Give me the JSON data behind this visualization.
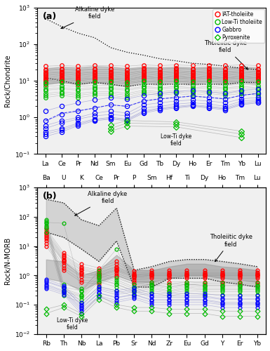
{
  "panel_a": {
    "title": "(a)",
    "ylabel": "Rock/Chondrite",
    "ylim_log": [
      -1,
      3
    ],
    "elements": [
      "La",
      "Ce",
      "Pr",
      "Nd",
      "Sm",
      "Eu",
      "Gd",
      "Tb",
      "Dy",
      "Ho",
      "Er",
      "Tm",
      "Yb",
      "Lu"
    ],
    "alkaline_field_upper": [
      500,
      300,
      200,
      150,
      80,
      60,
      50,
      40,
      35,
      30,
      28,
      25,
      22,
      20
    ],
    "alkaline_field_lower": [
      12,
      10,
      8,
      9,
      8,
      7,
      8,
      8,
      8,
      8,
      8,
      8,
      9,
      9
    ],
    "tholeiitic_field_upper": [
      22,
      24,
      23,
      25,
      24,
      22,
      24,
      23,
      24,
      23,
      24,
      23,
      24,
      23
    ],
    "tholeiitic_field_lower": [
      8,
      9,
      8,
      9,
      8,
      7,
      9,
      8,
      9,
      8,
      9,
      8,
      9,
      8
    ],
    "IAT_samples": [
      [
        11,
        12,
        11,
        12,
        12,
        11,
        13,
        12,
        13,
        12,
        13,
        12,
        13,
        12
      ],
      [
        10,
        11,
        10,
        11,
        11,
        10,
        12,
        11,
        12,
        11,
        12,
        11,
        12,
        11
      ],
      [
        12,
        13,
        12,
        13,
        13,
        12,
        14,
        13,
        14,
        13,
        14,
        13,
        14,
        13
      ],
      [
        9,
        10,
        9,
        10,
        10,
        9,
        11,
        10,
        11,
        10,
        11,
        10,
        11,
        10
      ],
      [
        14,
        15,
        14,
        15,
        15,
        14,
        16,
        15,
        16,
        15,
        16,
        15,
        16,
        15
      ],
      [
        11,
        12,
        11,
        12,
        12,
        11,
        13,
        12,
        13,
        12,
        13,
        12,
        13,
        12
      ],
      [
        15,
        16,
        15,
        16,
        16,
        15,
        17,
        16,
        17,
        16,
        17,
        16,
        17,
        16
      ],
      [
        8,
        9,
        8,
        9,
        9,
        8,
        10,
        9,
        10,
        9,
        10,
        9,
        10,
        9
      ],
      [
        20,
        21,
        20,
        21,
        21,
        20,
        22,
        21,
        22,
        21,
        22,
        21,
        22,
        21
      ],
      [
        13,
        14,
        13,
        14,
        14,
        13,
        15,
        14,
        15,
        14,
        15,
        14,
        15,
        14
      ],
      [
        17,
        18,
        17,
        18,
        18,
        17,
        19,
        18,
        19,
        18,
        19,
        18,
        19,
        18
      ],
      [
        10,
        11,
        10,
        11,
        11,
        10,
        12,
        11,
        12,
        11,
        12,
        11,
        12,
        11
      ],
      [
        25,
        26,
        25,
        26,
        26,
        25,
        27,
        26,
        27,
        26,
        27,
        26,
        27,
        26
      ],
      [
        16,
        17,
        16,
        17,
        17,
        16,
        18,
        17,
        18,
        17,
        18,
        17,
        18,
        17
      ],
      [
        19,
        20,
        19,
        20,
        20,
        19,
        21,
        20,
        21,
        20,
        21,
        20,
        21,
        20
      ]
    ],
    "LowTi_samples": [
      [
        4.5,
        5.0,
        4.5,
        5.0,
        5.0,
        4.5,
        5.5,
        5.0,
        5.5,
        5.0,
        5.5,
        5.0,
        5.5,
        5.0
      ],
      [
        3.5,
        4.0,
        3.5,
        4.0,
        4.0,
        3.5,
        4.5,
        4.0,
        4.5,
        4.0,
        4.5,
        4.0,
        4.5,
        4.0
      ],
      [
        5.5,
        6.0,
        5.5,
        6.0,
        6.0,
        5.5,
        6.5,
        6.0,
        6.5,
        6.0,
        6.5,
        6.0,
        6.5,
        6.0
      ],
      [
        7.0,
        7.5,
        7.0,
        7.5,
        7.5,
        7.0,
        8.0,
        7.5,
        8.0,
        7.5,
        8.0,
        7.5,
        8.0,
        7.5
      ],
      [
        6.0,
        6.5,
        6.0,
        6.5,
        6.5,
        6.0,
        7.0,
        6.5,
        7.0,
        6.5,
        7.0,
        6.5,
        7.0,
        6.5
      ],
      [
        8.5,
        9.0,
        8.5,
        9.0,
        9.0,
        8.5,
        9.5,
        9.0,
        9.5,
        9.0,
        9.5,
        9.0,
        9.5,
        9.0
      ],
      [
        4.0,
        4.5,
        4.0,
        4.5,
        4.5,
        4.0,
        5.0,
        4.5,
        5.0,
        4.5,
        5.0,
        4.5,
        5.0,
        4.5
      ],
      [
        9.0,
        9.5,
        9.0,
        9.5,
        9.5,
        9.0,
        10.0,
        9.5,
        10.0,
        9.5,
        10.0,
        9.5,
        10.0,
        9.5
      ]
    ],
    "Gabbro_samples": [
      [
        0.4,
        0.5,
        0.7,
        0.9,
        1.0,
        0.9,
        1.5,
        1.8,
        2.0,
        2.2,
        2.0,
        1.8,
        2.5,
        2.8
      ],
      [
        0.3,
        0.4,
        0.6,
        0.8,
        0.9,
        0.8,
        1.3,
        1.6,
        1.8,
        2.0,
        1.8,
        1.6,
        2.2,
        2.5
      ],
      [
        0.5,
        0.7,
        0.9,
        1.1,
        1.2,
        1.1,
        1.8,
        2.0,
        2.3,
        2.5,
        2.3,
        2.0,
        2.8,
        3.0
      ],
      [
        0.8,
        1.2,
        1.5,
        1.8,
        2.2,
        2.0,
        2.8,
        3.2,
        3.5,
        3.8,
        3.5,
        3.2,
        4.0,
        4.5
      ],
      [
        1.5,
        2.0,
        2.5,
        3.0,
        3.5,
        3.2,
        4.0,
        4.5,
        5.0,
        5.5,
        5.0,
        4.5,
        5.5,
        6.0
      ],
      [
        0.6,
        0.8,
        1.0,
        1.3,
        1.5,
        1.3,
        2.2,
        2.5,
        2.8,
        3.0,
        2.8,
        2.5,
        3.2,
        3.5
      ],
      [
        0.35,
        0.45,
        0.65,
        0.85,
        0.95,
        0.85,
        1.4,
        1.7,
        1.9,
        2.1,
        1.9,
        1.7,
        2.3,
        2.6
      ]
    ],
    "Gabbro_dashed": [
      0.8,
      1.3,
      1.5,
      1.8,
      2.2,
      2.0,
      2.8,
      3.2,
      3.5,
      3.8,
      3.5,
      3.2,
      4.0,
      4.5
    ],
    "Pyroxenite_samples": [
      [
        null,
        null,
        null,
        null,
        0.5,
        0.7,
        null,
        null,
        0.65,
        null,
        null,
        null,
        0.35,
        null
      ],
      [
        null,
        null,
        null,
        null,
        0.42,
        0.58,
        null,
        null,
        0.55,
        null,
        null,
        null,
        0.28,
        null
      ],
      [
        null,
        null,
        null,
        null,
        0.62,
        0.82,
        null,
        null,
        0.75,
        null,
        null,
        null,
        0.42,
        null
      ]
    ]
  },
  "panel_b": {
    "title": "(b)",
    "ylabel": "Rock/N-MORB",
    "elements_bot": [
      "Rb",
      "Th",
      "Nb",
      "La",
      "Pb",
      "Sr",
      "Nd",
      "Zr",
      "Eu",
      "Gd",
      "Y",
      "Er",
      "Yb"
    ],
    "elements_top": [
      "Ba",
      "U",
      "K",
      "Ce",
      "Pr",
      "P",
      "Sm",
      "Hf",
      "Ti",
      "Dy",
      "Ho",
      "Tm",
      "Lu"
    ],
    "alkaline_field_upper": [
      400,
      300,
      80,
      50,
      200,
      1.5,
      2.0,
      3.0,
      3.5,
      3.5,
      3.0,
      2.5,
      2.0
    ],
    "alkaline_field_lower": [
      30,
      20,
      8,
      3,
      15,
      0.4,
      0.4,
      0.8,
      0.8,
      0.8,
      0.6,
      0.5,
      0.4
    ],
    "tholeiitic_field_upper": [
      3.5,
      3.0,
      1.0,
      1.5,
      5.0,
      1.5,
      1.5,
      2.0,
      2.5,
      2.5,
      2.0,
      1.8,
      1.5
    ],
    "tholeiitic_field_lower": [
      0.8,
      0.6,
      0.3,
      0.6,
      1.0,
      0.6,
      0.6,
      0.8,
      1.0,
      1.0,
      0.8,
      0.7,
      0.6
    ],
    "IAT_samples": [
      [
        20,
        3.0,
        1.2,
        1.0,
        1.5,
        0.9,
        1.0,
        1.0,
        1.0,
        1.0,
        1.0,
        1.0,
        1.0
      ],
      [
        30,
        4.5,
        1.8,
        1.3,
        2.0,
        1.1,
        1.2,
        1.2,
        1.2,
        1.2,
        1.2,
        1.2,
        1.2
      ],
      [
        15,
        2.2,
        0.9,
        0.8,
        1.2,
        0.7,
        0.8,
        0.8,
        0.8,
        0.8,
        0.8,
        0.8,
        0.8
      ],
      [
        25,
        3.5,
        1.5,
        1.1,
        1.7,
        1.0,
        1.1,
        1.1,
        1.1,
        1.1,
        1.1,
        1.1,
        1.1
      ],
      [
        12,
        1.8,
        0.7,
        0.6,
        1.0,
        0.6,
        0.6,
        0.6,
        0.6,
        0.6,
        0.6,
        0.6,
        0.6
      ],
      [
        35,
        5.0,
        2.0,
        1.5,
        2.5,
        1.2,
        1.3,
        1.3,
        1.3,
        1.3,
        1.3,
        1.3,
        1.3
      ],
      [
        18,
        2.8,
        1.1,
        0.9,
        1.4,
        0.8,
        0.9,
        0.9,
        0.9,
        0.9,
        0.9,
        0.9,
        0.9
      ],
      [
        22,
        3.2,
        1.3,
        1.0,
        1.6,
        0.9,
        1.0,
        1.0,
        1.0,
        1.0,
        1.0,
        1.0,
        1.0
      ],
      [
        28,
        4.0,
        1.6,
        1.2,
        1.9,
        1.0,
        1.1,
        1.1,
        1.1,
        1.1,
        1.1,
        1.1,
        1.1
      ],
      [
        10,
        1.5,
        0.6,
        0.5,
        0.9,
        0.5,
        0.5,
        0.5,
        0.5,
        0.5,
        0.5,
        0.5,
        0.5
      ],
      [
        40,
        6.0,
        2.5,
        1.8,
        3.0,
        1.4,
        1.5,
        1.5,
        1.5,
        1.5,
        1.5,
        1.5,
        1.5
      ]
    ],
    "LowTi_samples": [
      [
        50,
        0.3,
        0.2,
        0.8,
        0.5,
        0.3,
        0.4,
        0.3,
        0.4,
        0.35,
        0.35,
        0.35,
        0.35
      ],
      [
        70,
        0.4,
        0.3,
        1.0,
        0.7,
        0.4,
        0.5,
        0.4,
        0.5,
        0.45,
        0.45,
        0.45,
        0.45
      ],
      [
        40,
        0.25,
        0.15,
        0.6,
        0.4,
        0.25,
        0.3,
        0.25,
        0.3,
        0.28,
        0.28,
        0.28,
        0.28
      ],
      [
        30,
        0.2,
        0.12,
        0.4,
        0.3,
        0.2,
        0.25,
        0.2,
        0.25,
        0.22,
        0.22,
        0.22,
        0.22
      ],
      [
        80,
        0.5,
        0.35,
        1.2,
        0.8,
        0.5,
        0.6,
        0.5,
        0.6,
        0.55,
        0.55,
        0.55,
        0.55
      ],
      [
        60,
        0.35,
        0.22,
        0.9,
        0.6,
        0.35,
        0.45,
        0.35,
        0.45,
        0.4,
        0.4,
        0.4,
        0.4
      ],
      [
        45,
        0.28,
        0.18,
        0.7,
        0.5,
        0.28,
        0.35,
        0.28,
        0.35,
        0.32,
        0.32,
        0.32,
        0.32
      ],
      [
        65,
        60,
        0.28,
        1.5,
        8.0,
        0.4,
        0.5,
        0.4,
        0.5,
        0.45,
        0.45,
        0.45,
        0.45
      ]
    ],
    "Gabbro_samples": [
      [
        0.5,
        0.3,
        0.08,
        0.25,
        0.18,
        0.22,
        0.15,
        0.15,
        0.15,
        0.15,
        0.12,
        0.12,
        0.12
      ],
      [
        0.4,
        0.25,
        0.06,
        0.2,
        0.14,
        0.18,
        0.12,
        0.12,
        0.12,
        0.12,
        0.1,
        0.1,
        0.1
      ],
      [
        0.6,
        0.38,
        0.1,
        0.32,
        0.22,
        0.28,
        0.18,
        0.18,
        0.18,
        0.18,
        0.15,
        0.15,
        0.15
      ],
      [
        0.35,
        0.22,
        0.05,
        0.18,
        0.12,
        0.16,
        0.1,
        0.1,
        0.1,
        0.1,
        0.08,
        0.08,
        0.08
      ],
      [
        0.75,
        0.45,
        0.12,
        0.42,
        0.3,
        0.38,
        0.24,
        0.24,
        0.24,
        0.24,
        0.2,
        0.2,
        0.2
      ],
      [
        0.65,
        0.4,
        0.09,
        0.36,
        0.26,
        0.32,
        0.2,
        0.2,
        0.2,
        0.2,
        0.16,
        0.16,
        0.16
      ],
      [
        0.45,
        0.28,
        0.07,
        0.25,
        0.17,
        0.22,
        0.14,
        0.14,
        0.14,
        0.14,
        0.11,
        0.11,
        0.11
      ]
    ],
    "Pyroxenite_samples": [
      [
        0.05,
        0.08,
        0.04,
        0.15,
        0.08,
        0.06,
        0.06,
        0.05,
        0.05,
        0.05,
        0.04,
        0.04,
        0.04
      ],
      [
        0.07,
        0.1,
        0.05,
        0.2,
        0.1,
        0.08,
        0.08,
        0.07,
        0.07,
        0.07,
        0.06,
        0.06,
        0.06
      ]
    ]
  },
  "legend_labels": [
    "IAT-tholeiite",
    "Low-Ti tholeiite",
    "Gabbro",
    "Pyroxenite"
  ],
  "legend_colors": [
    "#ff0000",
    "#00bb00",
    "#0000ff",
    "#00bb00"
  ],
  "legend_markers": [
    "o",
    "o",
    "o",
    "D"
  ],
  "bg_color": "#f0f0f0"
}
